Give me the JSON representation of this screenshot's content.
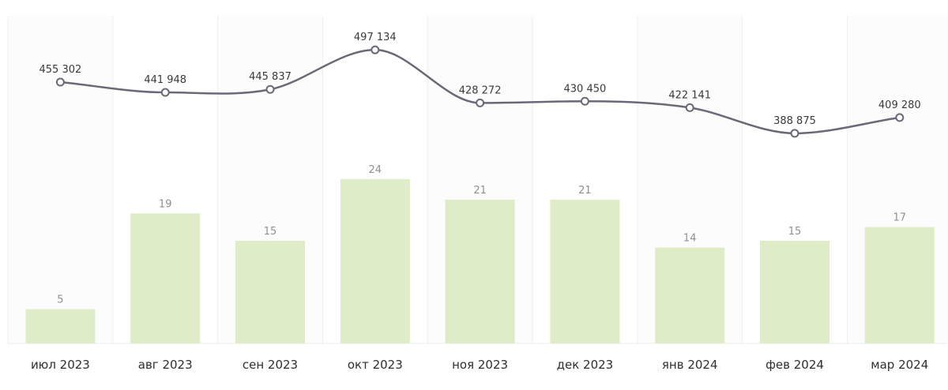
{
  "chart_data": {
    "type": "bar",
    "categories": [
      "июл 2023",
      "авг 2023",
      "сен 2023",
      "окт 2023",
      "ноя 2023",
      "дек 2023",
      "янв 2024",
      "фев 2024",
      "мар 2024"
    ],
    "series": [
      {
        "type": "bar",
        "values": [
          5,
          19,
          15,
          24,
          21,
          21,
          14,
          15,
          17
        ],
        "color": "#deedc8"
      },
      {
        "type": "line",
        "values": [
          455302,
          441948,
          445837,
          497134,
          428272,
          430450,
          422141,
          388875,
          409280
        ],
        "labels": [
          "455 302",
          "441 948",
          "445 837",
          "497 134",
          "428 272",
          "430 450",
          "422 141",
          "388 875",
          "409 280"
        ],
        "color": "#6b6878",
        "smooth": true
      }
    ],
    "grid": "vertical-bands",
    "legend": "none"
  }
}
